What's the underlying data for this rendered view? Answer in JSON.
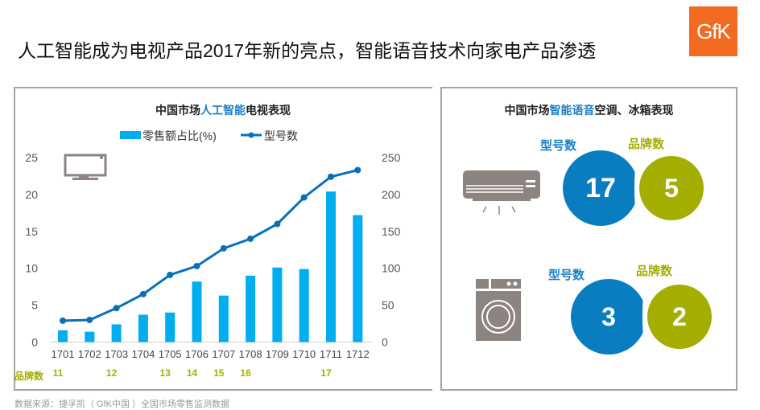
{
  "title": "人工智能成为电视产品2017年新的亮点，智能语音技术向家电产品渗透",
  "logo": "GfK",
  "source": "数据来源：捷孚凯（ GfK中国 ）全国市场零售监测数据",
  "left_panel": {
    "title_pre": "中国市场",
    "title_hl": "人工智能",
    "title_post": "电视表现",
    "icon": "tv-icon",
    "brand_label": "品牌数"
  },
  "right_panel": {
    "title_pre": "中国市场",
    "title_hl": "智能语音",
    "title_post": "空调、冰箱表现",
    "items": [
      {
        "icon": "air-conditioner-icon",
        "model_label": "型号数",
        "model_count": "17",
        "brand_label": "品牌数",
        "brand_count": "5"
      },
      {
        "icon": "washing-machine-icon",
        "model_label": "型号数",
        "model_count": "3",
        "brand_label": "品牌数",
        "brand_count": "2"
      }
    ]
  },
  "colors": {
    "bar": "#00aeef",
    "line": "#0a6fba",
    "brand": "#a4ae00",
    "accent": "#1a7fc4",
    "logo": "#f26b21"
  },
  "chart_data": {
    "type": "bar+line",
    "categories": [
      "1701",
      "1702",
      "1703",
      "1704",
      "1705",
      "1706",
      "1707",
      "1708",
      "1709",
      "1710",
      "1711",
      "1712"
    ],
    "series": [
      {
        "name": "零售额占比(%)",
        "type": "bar",
        "axis": "left",
        "values": [
          1.6,
          1.4,
          2.4,
          3.7,
          4.0,
          8.2,
          6.3,
          9.0,
          10.1,
          9.9,
          20.4,
          17.2
        ]
      },
      {
        "name": "型号数",
        "type": "line",
        "axis": "right",
        "values": [
          29,
          30,
          46,
          65,
          91,
          103,
          127,
          140,
          160,
          196,
          224,
          233
        ]
      }
    ],
    "left_ylim": [
      0,
      25
    ],
    "left_ticks": [
      "0",
      "5",
      "10",
      "15",
      "20",
      "25"
    ],
    "right_ylim": [
      0,
      250
    ],
    "right_ticks": [
      "0",
      "50",
      "100",
      "150",
      "200",
      "250"
    ],
    "brand_counts": {
      "1701": "11",
      "1703": "12",
      "1705": "13",
      "1706": "14",
      "1707": "15",
      "1708": "16",
      "1711": "17"
    },
    "legend": "top",
    "grid": false
  }
}
